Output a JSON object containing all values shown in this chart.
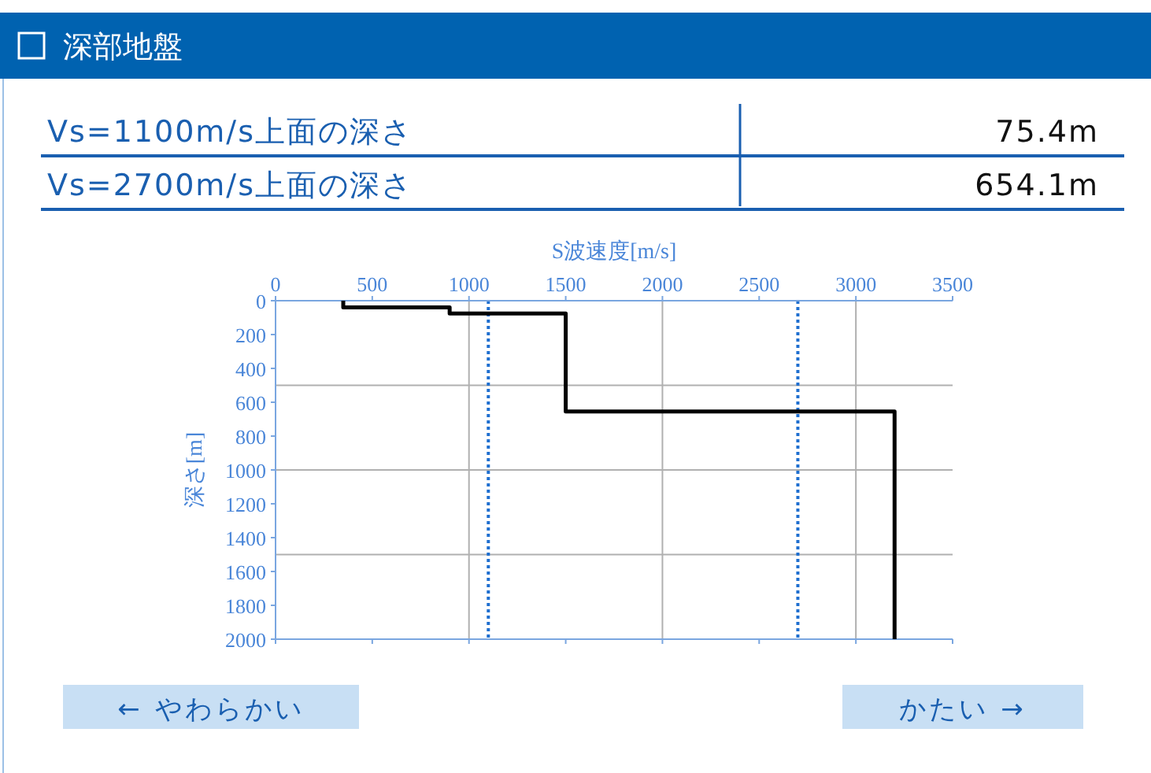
{
  "chart_data": {
    "type": "line",
    "title": "深部地盤",
    "xlabel": "S波速度[m/s]",
    "ylabel": "深さ[m]",
    "xlim": [
      0,
      3500
    ],
    "xticks": [
      0,
      500,
      1000,
      1500,
      2000,
      2500,
      3000,
      3500
    ],
    "ylim": [
      2000,
      0
    ],
    "yticks": [
      0,
      200,
      400,
      600,
      800,
      1000,
      1200,
      1400,
      1600,
      1800,
      2000
    ],
    "series": [
      {
        "color": "#000000",
        "x": [
          350,
          350,
          900,
          900,
          1500,
          1500,
          3200,
          3200
        ],
        "values": [
          0,
          40,
          40,
          75.4,
          75.4,
          654.1,
          654.1,
          2000
        ]
      }
    ],
    "ref_lines": [
      {
        "axis": "x",
        "value": 1000,
        "color": "#b0b0b0",
        "line_style": "solid"
      },
      {
        "axis": "x",
        "value": 2000,
        "color": "#b0b0b0",
        "line_style": "solid"
      },
      {
        "axis": "x",
        "value": 3000,
        "color": "#b0b0b0",
        "line_style": "solid"
      },
      {
        "axis": "y",
        "value": 500,
        "color": "#b0b0b0",
        "line_style": "solid"
      },
      {
        "axis": "y",
        "value": 1000,
        "color": "#b0b0b0",
        "line_style": "solid"
      },
      {
        "axis": "y",
        "value": 1500,
        "color": "#b0b0b0",
        "line_style": "solid"
      },
      {
        "axis": "x",
        "value": 1100,
        "color": "#1f6fd0",
        "line_style": "dotted"
      },
      {
        "axis": "x",
        "value": 2700,
        "color": "#1f6fd0",
        "line_style": "dotted"
      }
    ],
    "annotations": [
      "Vs=1100m/s上面の深さ",
      "75.4m",
      "Vs=2700m/s上面の深さ",
      "654.1m",
      "← やわらかい",
      "かたい →"
    ]
  }
}
